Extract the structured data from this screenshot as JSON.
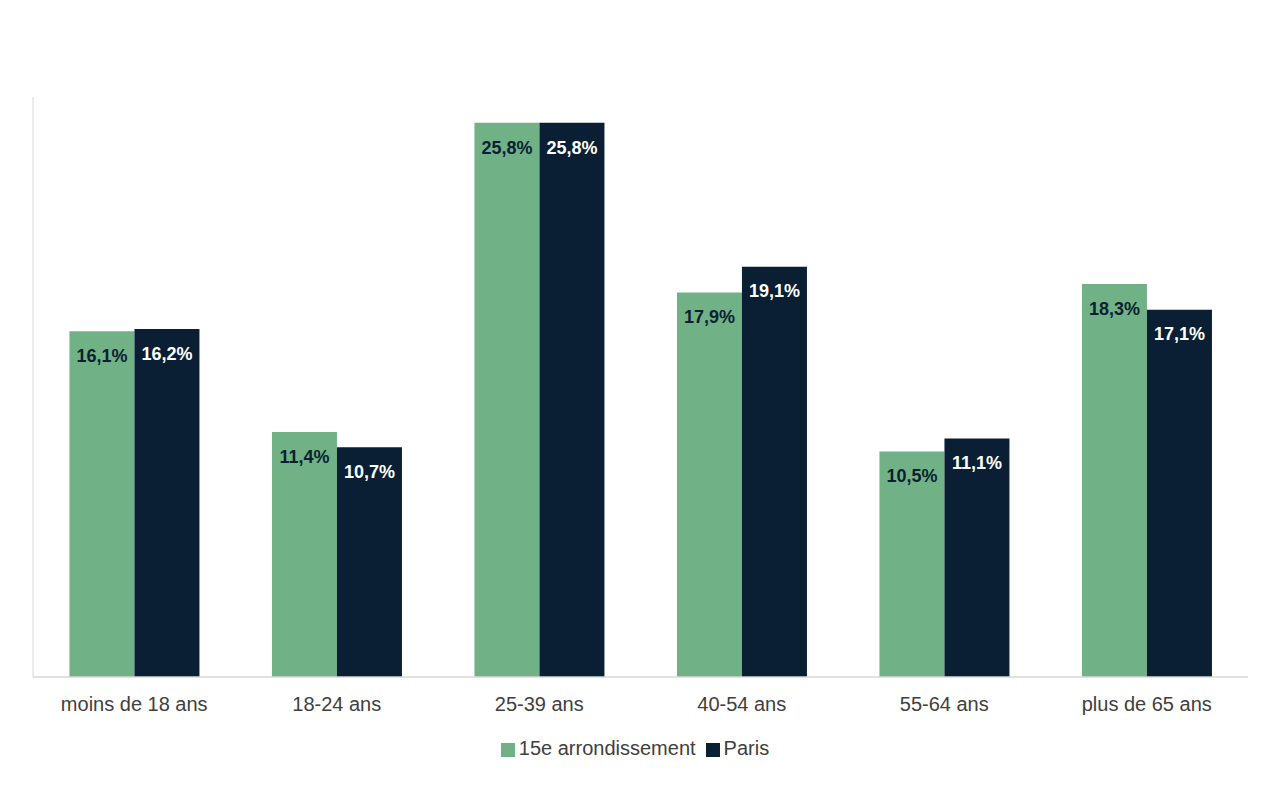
{
  "chart_data": {
    "type": "bar",
    "categories": [
      "moins de 18 ans",
      "18-24 ans",
      "25-39 ans",
      "40-54 ans",
      "55-64 ans",
      "plus de 65 ans"
    ],
    "series": [
      {
        "name": "15e arrondissement",
        "color": "#71b186",
        "values": [
          16.1,
          11.4,
          25.8,
          17.9,
          10.5,
          18.3
        ],
        "value_labels": [
          "16,1%",
          "11,4%",
          "25,8%",
          "17,9%",
          "10,5%",
          "18,3%"
        ]
      },
      {
        "name": "Paris",
        "color": "#0a1f33",
        "values": [
          16.2,
          10.7,
          25.8,
          19.1,
          11.1,
          17.1
        ],
        "value_labels": [
          "16,2%",
          "10,7%",
          "25,8%",
          "19,1%",
          "11,1%",
          "17,1%"
        ]
      }
    ],
    "ylim": [
      0,
      27
    ],
    "grid": false,
    "legend": "bottom",
    "data_labels": true,
    "tick_labels": "x"
  }
}
